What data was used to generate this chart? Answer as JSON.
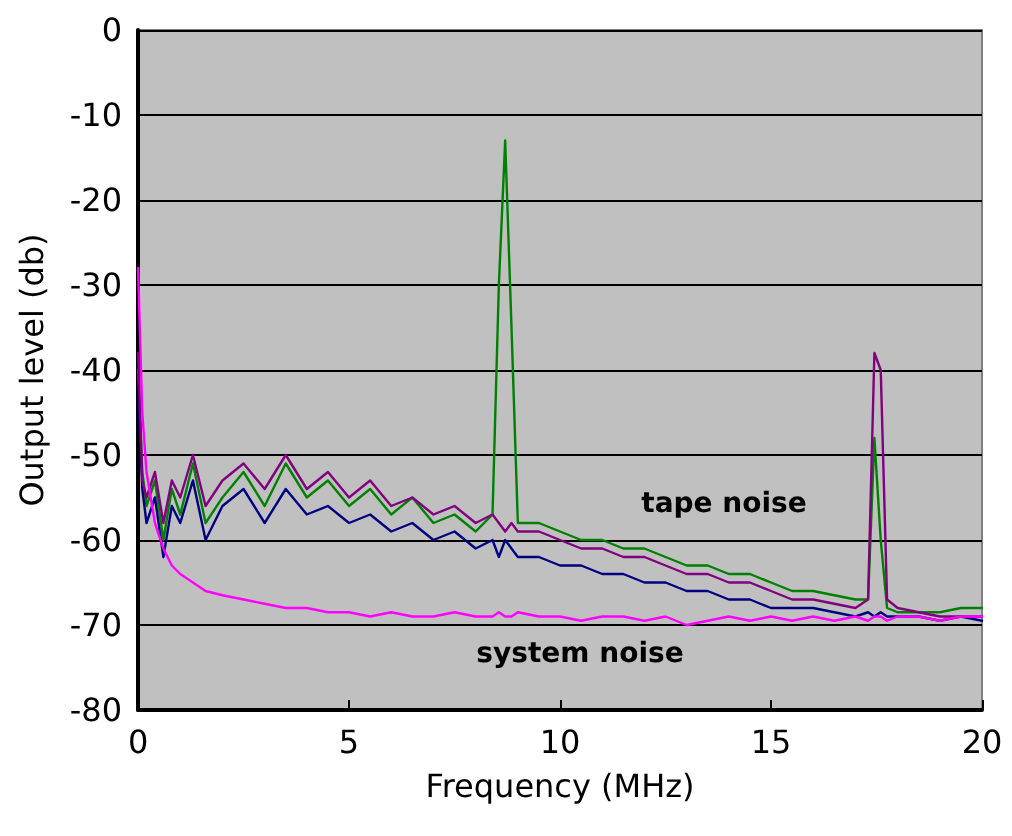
{
  "chart_data": {
    "type": "line",
    "xlabel": "Frequency (MHz)",
    "ylabel": "Output level (db)",
    "x": [
      0,
      0.1,
      0.2,
      0.4,
      0.6,
      0.8,
      1,
      1.3,
      1.6,
      2,
      2.5,
      3,
      3.5,
      4,
      4.5,
      5,
      5.5,
      6,
      6.5,
      7,
      7.5,
      8,
      8.4,
      8.55,
      8.7,
      8.85,
      9,
      9.5,
      10,
      10.5,
      11,
      11.5,
      12,
      12.5,
      13,
      13.5,
      14,
      14.5,
      15,
      15.5,
      16,
      16.5,
      17,
      17.3,
      17.45,
      17.6,
      17.75,
      18,
      18.5,
      19,
      19.5,
      20
    ],
    "series": [
      {
        "color": "#008000",
        "values": [
          -40,
          -52,
          -56,
          -53,
          -60,
          -54,
          -57,
          -51,
          -58,
          -55,
          -52,
          -56,
          -51,
          -55,
          -53,
          -56,
          -54,
          -57,
          -55,
          -58,
          -57,
          -59,
          -57,
          -30,
          -13,
          -35,
          -58,
          -58,
          -59,
          -60,
          -60,
          -61,
          -61,
          -62,
          -63,
          -63,
          -64,
          -64,
          -65,
          -66,
          -66,
          -66.5,
          -67,
          -67,
          -48,
          -60,
          -68,
          -68.5,
          -68.5,
          -68.5,
          -68,
          -68
        ]
      },
      {
        "color": "#000080",
        "values": [
          -42,
          -54,
          -58,
          -55,
          -62,
          -56,
          -58,
          -53,
          -60,
          -56,
          -54,
          -58,
          -54,
          -57,
          -56,
          -58,
          -57,
          -59,
          -58,
          -60,
          -59,
          -61,
          -60,
          -62,
          -60,
          -61,
          -62,
          -62,
          -63,
          -63,
          -64,
          -64,
          -65,
          -65,
          -66,
          -66,
          -67,
          -67,
          -68,
          -68,
          -68,
          -68.5,
          -69,
          -68.5,
          -69,
          -68.5,
          -69,
          -69,
          -69,
          -69.5,
          -69,
          -69.5
        ]
      },
      {
        "color": "#800080",
        "values": [
          -38,
          -53,
          -55,
          -52,
          -58,
          -53,
          -55,
          -50,
          -56,
          -53,
          -51,
          -54,
          -50,
          -54,
          -52,
          -55,
          -53,
          -56,
          -55,
          -57,
          -56,
          -58,
          -57,
          -58,
          -59,
          -58,
          -59,
          -59,
          -60,
          -61,
          -61,
          -62,
          -62,
          -63,
          -64,
          -64,
          -65,
          -65,
          -66,
          -67,
          -67,
          -67.5,
          -68,
          -67,
          -38,
          -40,
          -67,
          -68,
          -68.5,
          -69,
          -69,
          -69
        ]
      },
      {
        "color": "#ff00ff",
        "values": [
          -28,
          -45,
          -52,
          -58,
          -61,
          -63,
          -64,
          -65,
          -66,
          -66.5,
          -67,
          -67.5,
          -68,
          -68,
          -68.5,
          -68.5,
          -69,
          -68.5,
          -69,
          -69,
          -68.5,
          -69,
          -69,
          -68.5,
          -69,
          -69,
          -68.5,
          -69,
          -69,
          -69.5,
          -69,
          -69,
          -69.5,
          -69,
          -70,
          -69.5,
          -69,
          -69.5,
          -69,
          -69.5,
          -69,
          -69.5,
          -69,
          -69.5,
          -69,
          -69,
          -69.5,
          -69,
          -69,
          -69.5,
          -69,
          -69
        ]
      }
    ],
    "xlim": [
      0,
      20
    ],
    "xticks": [
      0,
      5,
      10,
      15,
      20
    ],
    "ylim": [
      -80,
      0
    ],
    "yticks": [
      -80,
      -70,
      -60,
      -50,
      -40,
      -30,
      -20,
      -10,
      0
    ],
    "grid": "y",
    "marker": "none",
    "line_style": "solid",
    "annotations": [
      "tape noise",
      "system noise"
    ]
  }
}
